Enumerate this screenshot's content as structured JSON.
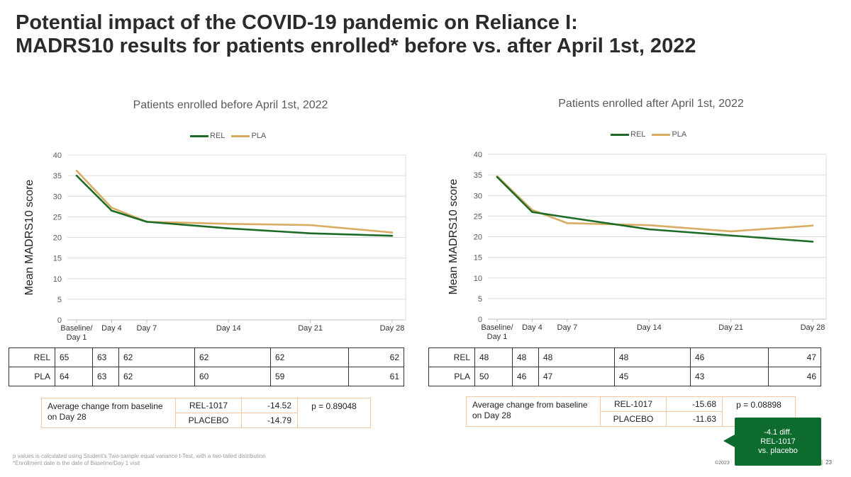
{
  "title": {
    "line1": "Potential impact of the COVID-19 pandemic on Reliance I:",
    "line2": "MADRS10 results for patients enrolled* before vs. after April 1st, 2022"
  },
  "colors": {
    "rel": "#1e6b27",
    "pla": "#d8ac63",
    "callout": "#0e6b2e"
  },
  "chart_data": [
    {
      "type": "line",
      "title": "Patients enrolled before April 1st, 2022",
      "ylabel": "Mean MADRS10 score",
      "xlabel": "",
      "categories": [
        "Baseline/ Day 1",
        "Day 4",
        "Day 7",
        "Day 14",
        "Day 21",
        "Day 28"
      ],
      "x_day": [
        1,
        4,
        7,
        14,
        21,
        28
      ],
      "ylim": [
        0,
        40
      ],
      "yticks": [
        0,
        5,
        10,
        15,
        20,
        25,
        30,
        35,
        40
      ],
      "grid": true,
      "legend_position": "top",
      "series": [
        {
          "name": "REL",
          "values": [
            35.0,
            26.5,
            23.8,
            22.2,
            21.0,
            20.4
          ]
        },
        {
          "name": "PLA",
          "values": [
            36.2,
            27.2,
            23.8,
            23.3,
            23.0,
            21.2
          ]
        }
      ]
    },
    {
      "type": "line",
      "title": "Patients enrolled after April 1st, 2022",
      "ylabel": "Mean MADRS10 score",
      "xlabel": "",
      "categories": [
        "Baseline/ Day 1",
        "Day 4",
        "Day 7",
        "Day 14",
        "Day 21",
        "Day 28"
      ],
      "x_day": [
        1,
        4,
        7,
        14,
        21,
        28
      ],
      "ylim": [
        0,
        40
      ],
      "yticks": [
        0,
        5,
        10,
        15,
        20,
        25,
        30,
        35,
        40
      ],
      "grid": true,
      "legend_position": "top",
      "series": [
        {
          "name": "REL",
          "values": [
            34.5,
            26.0,
            24.7,
            21.8,
            20.3,
            18.8
          ]
        },
        {
          "name": "PLA",
          "values": [
            34.7,
            26.5,
            23.3,
            22.8,
            21.3,
            22.7
          ]
        }
      ]
    }
  ],
  "panels": [
    {
      "counts": [
        {
          "label": "REL",
          "values": [
            "65",
            "63",
            "62",
            "62",
            "62",
            "62"
          ]
        },
        {
          "label": "PLA",
          "values": [
            "64",
            "63",
            "62",
            "60",
            "59",
            "61"
          ]
        }
      ],
      "avg": {
        "label": "Average change from baseline on Day 28",
        "rel_name": "REL-1017",
        "rel_value": "-14.52",
        "pla_name": "PLACEBO",
        "pla_value": "-14.79",
        "p_value": "p = 0.89048"
      }
    },
    {
      "counts": [
        {
          "label": "REL",
          "values": [
            "48",
            "48",
            "48",
            "48",
            "46",
            "47"
          ]
        },
        {
          "label": "PLA",
          "values": [
            "50",
            "46",
            "47",
            "45",
            "43",
            "46"
          ]
        }
      ],
      "avg": {
        "label": "Average change from baseline on Day 28",
        "rel_name": "REL-1017",
        "rel_value": "-15.68",
        "pla_name": "PLACEBO",
        "pla_value": "-11.63",
        "p_value": "p = 0.08898"
      }
    }
  ],
  "callout": {
    "line1": "-4.1 diff.",
    "line2": "REL-1017",
    "line3": "vs. placebo"
  },
  "footnote": {
    "line1": "p values is calculated using Student's Two-sample equal variance t-Test, with a two-tailed distribution",
    "line2": "*Enrollment date is the date of Baseline/Day 1 visit"
  },
  "copyright": "©2023",
  "page_number": "23"
}
